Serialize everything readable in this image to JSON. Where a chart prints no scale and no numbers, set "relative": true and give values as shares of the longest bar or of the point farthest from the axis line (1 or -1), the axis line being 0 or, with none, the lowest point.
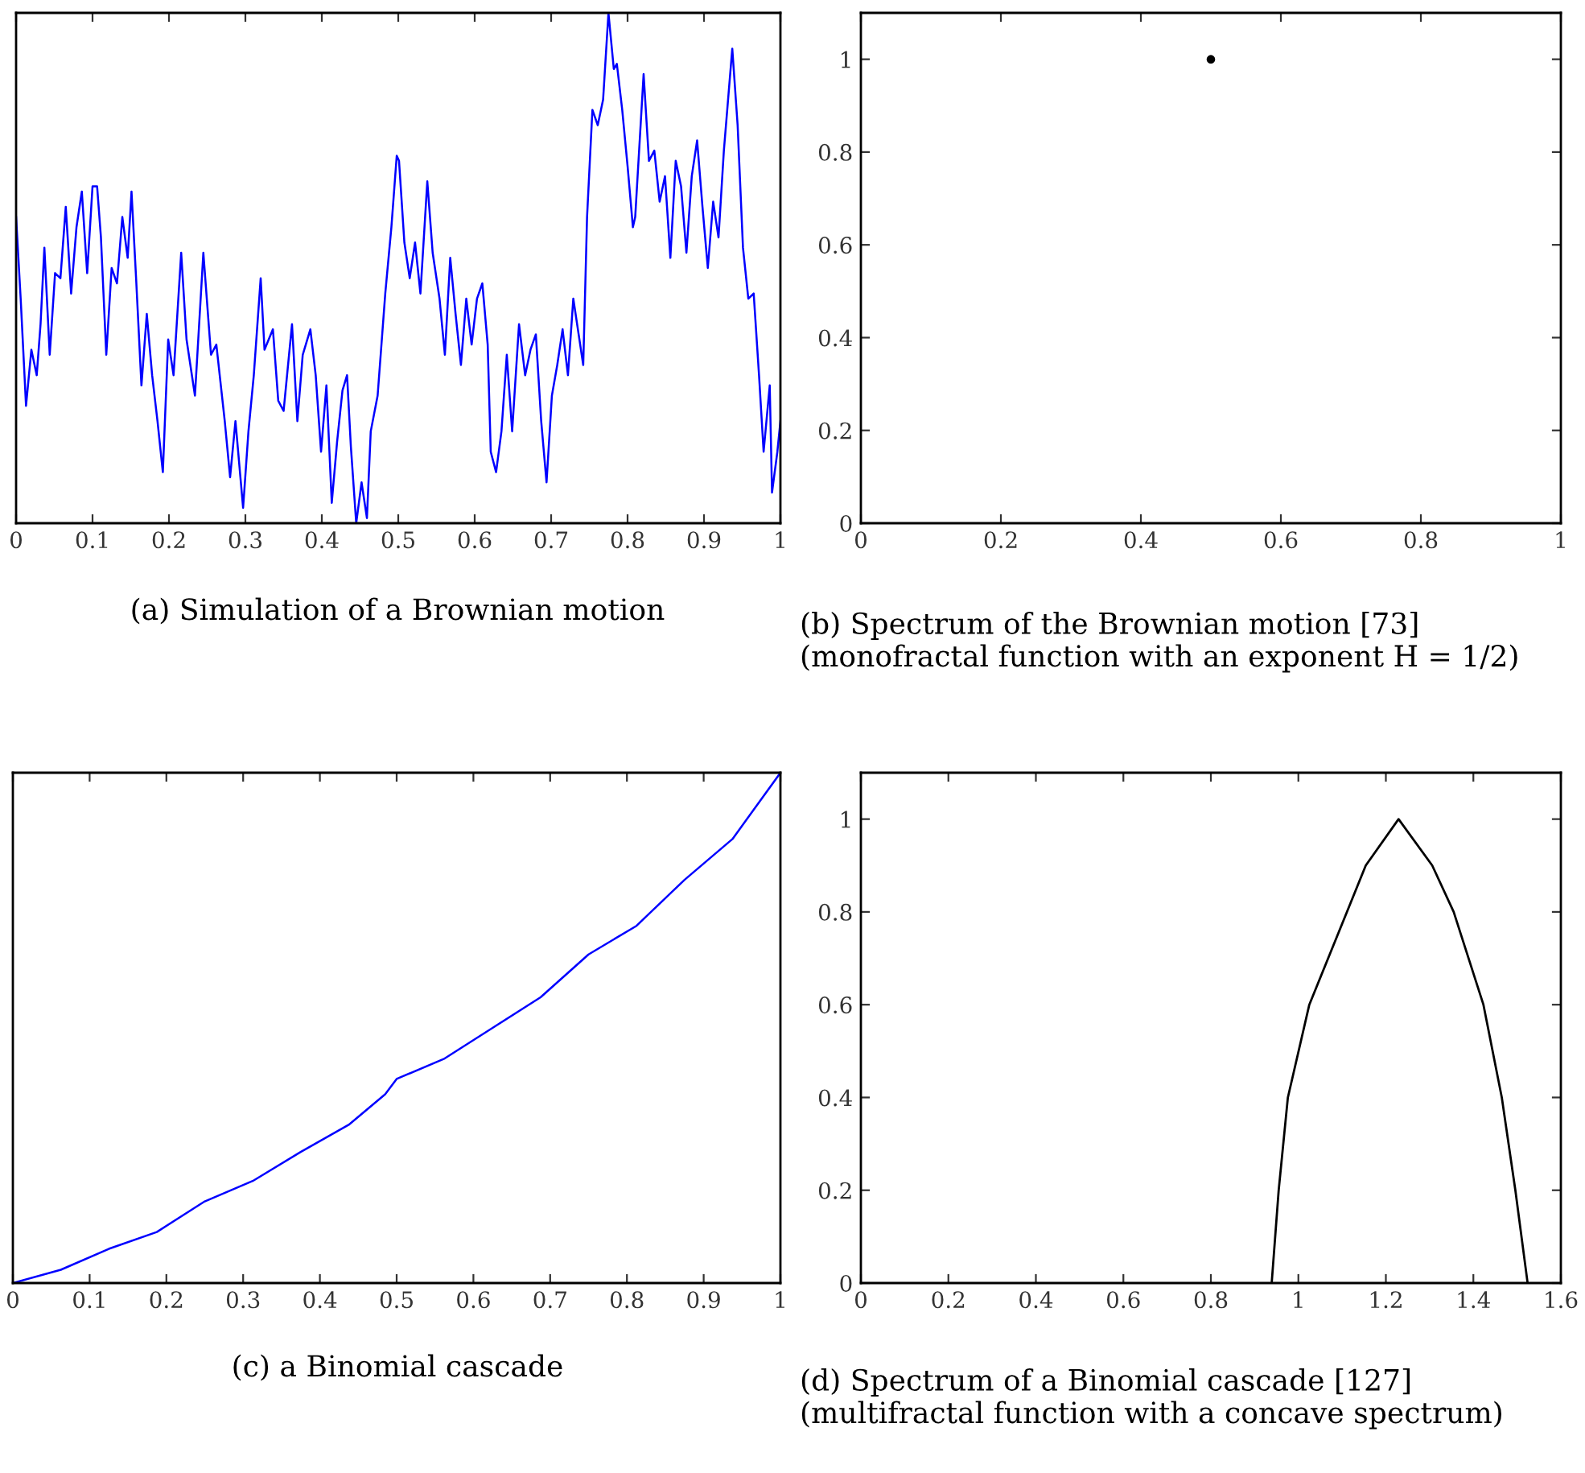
{
  "chart_data": [
    {
      "type": "line",
      "relative": true,
      "color": "#0000ff",
      "xlim": [
        0,
        1
      ],
      "xticks": [
        0,
        0.1,
        0.2,
        0.3,
        0.4,
        0.5,
        0.6,
        0.7,
        0.8,
        0.9,
        1
      ],
      "tick_labels": "x",
      "grid": false,
      "x": [
        0,
        0.006,
        0.013,
        0.02,
        0.027,
        0.032,
        0.037,
        0.044,
        0.051,
        0.058,
        0.065,
        0.072,
        0.079,
        0.086,
        0.093,
        0.1,
        0.106,
        0.111,
        0.118,
        0.125,
        0.132,
        0.139,
        0.146,
        0.151,
        0.157,
        0.164,
        0.171,
        0.178,
        0.185,
        0.192,
        0.199,
        0.206,
        0.216,
        0.223,
        0.234,
        0.245,
        0.255,
        0.262,
        0.273,
        0.28,
        0.287,
        0.297,
        0.304,
        0.311,
        0.32,
        0.325,
        0.336,
        0.343,
        0.35,
        0.361,
        0.368,
        0.375,
        0.385,
        0.392,
        0.399,
        0.406,
        0.413,
        0.42,
        0.427,
        0.433,
        0.438,
        0.445,
        0.452,
        0.459,
        0.464,
        0.473,
        0.483,
        0.491,
        0.498,
        0.501,
        0.508,
        0.515,
        0.522,
        0.529,
        0.538,
        0.545,
        0.554,
        0.561,
        0.568,
        0.575,
        0.582,
        0.589,
        0.596,
        0.603,
        0.61,
        0.617,
        0.621,
        0.628,
        0.635,
        0.642,
        0.649,
        0.658,
        0.666,
        0.673,
        0.68,
        0.687,
        0.694,
        0.701,
        0.708,
        0.715,
        0.722,
        0.729,
        0.736,
        0.742,
        0.747,
        0.754,
        0.761,
        0.768,
        0.775,
        0.782,
        0.786,
        0.793,
        0.8,
        0.807,
        0.81,
        0.821,
        0.828,
        0.835,
        0.842,
        0.849,
        0.856,
        0.863,
        0.87,
        0.877,
        0.884,
        0.891,
        0.898,
        0.905,
        0.912,
        0.919,
        0.926,
        0.937,
        0.944,
        0.951,
        0.958,
        0.965,
        0.972,
        0.978,
        0.986,
        0.989,
        0.996,
        1
      ],
      "values": [
        0.6,
        0.44,
        0.23,
        0.34,
        0.29,
        0.39,
        0.54,
        0.33,
        0.49,
        0.48,
        0.62,
        0.45,
        0.58,
        0.65,
        0.49,
        0.66,
        0.66,
        0.56,
        0.33,
        0.5,
        0.47,
        0.6,
        0.52,
        0.65,
        0.48,
        0.27,
        0.41,
        0.29,
        0.2,
        0.1,
        0.36,
        0.29,
        0.53,
        0.36,
        0.25,
        0.53,
        0.33,
        0.35,
        0.2,
        0.09,
        0.2,
        0.03,
        0.18,
        0.29,
        0.48,
        0.34,
        0.38,
        0.24,
        0.22,
        0.39,
        0.2,
        0.33,
        0.38,
        0.29,
        0.14,
        0.27,
        0.04,
        0.16,
        0.26,
        0.29,
        0.15,
        0,
        0.08,
        0.01,
        0.18,
        0.25,
        0.45,
        0.58,
        0.72,
        0.71,
        0.55,
        0.48,
        0.55,
        0.45,
        0.67,
        0.53,
        0.44,
        0.33,
        0.52,
        0.41,
        0.31,
        0.44,
        0.35,
        0.44,
        0.47,
        0.35,
        0.14,
        0.1,
        0.18,
        0.33,
        0.18,
        0.39,
        0.29,
        0.34,
        0.37,
        0.2,
        0.08,
        0.25,
        0.31,
        0.38,
        0.29,
        0.44,
        0.37,
        0.31,
        0.6,
        0.81,
        0.78,
        0.83,
        1,
        0.89,
        0.9,
        0.81,
        0.7,
        0.58,
        0.6,
        0.88,
        0.71,
        0.73,
        0.63,
        0.68,
        0.52,
        0.71,
        0.66,
        0.53,
        0.68,
        0.75,
        0.62,
        0.5,
        0.63,
        0.56,
        0.73,
        0.93,
        0.78,
        0.54,
        0.44,
        0.45,
        0.29,
        0.14,
        0.27,
        0.06,
        0.14,
        0.2
      ],
      "annotations": [
        "(a) Simulation of a Brownian motion"
      ]
    },
    {
      "type": "scatter",
      "color": "#000000",
      "marker": "circle",
      "xlim": [
        0,
        1
      ],
      "ylim": [
        0,
        1.1
      ],
      "xticks": [
        0,
        0.2,
        0.4,
        0.6,
        0.8,
        1
      ],
      "yticks": [
        0,
        0.2,
        0.4,
        0.6,
        0.8,
        1
      ],
      "grid": false,
      "x": [
        0.5
      ],
      "values": [
        1
      ],
      "annotations": [
        "(b) Spectrum of the Brownian motion [73] (monofractal function with an exponent H = 1/2)"
      ]
    },
    {
      "type": "line",
      "relative": true,
      "color": "#0000ff",
      "xlim": [
        0,
        1
      ],
      "xticks": [
        0,
        0.1,
        0.2,
        0.3,
        0.4,
        0.5,
        0.6,
        0.7,
        0.8,
        0.9,
        1
      ],
      "tick_labels": "x",
      "grid": false,
      "x": [
        0,
        0.0625,
        0.125,
        0.1875,
        0.25,
        0.3125,
        0.375,
        0.4375,
        0.485,
        0.5,
        0.5625,
        0.625,
        0.6875,
        0.75,
        0.8125,
        0.875,
        0.9375,
        1
      ],
      "values": [
        0,
        0.026,
        0.067,
        0.1,
        0.16,
        0.2,
        0.257,
        0.31,
        0.37,
        0.4,
        0.44,
        0.5,
        0.56,
        0.644,
        0.7,
        0.79,
        0.87,
        1
      ],
      "annotations": [
        "(c) a Binomial cascade"
      ]
    },
    {
      "type": "line",
      "color": "#000000",
      "xlim": [
        0,
        1.6
      ],
      "ylim": [
        0,
        1.1
      ],
      "xticks": [
        0,
        0.2,
        0.4,
        0.6,
        0.8,
        1,
        1.2,
        1.4,
        1.6
      ],
      "yticks": [
        0,
        0.2,
        0.4,
        0.6,
        0.8,
        1
      ],
      "grid": false,
      "x": [
        0.939,
        0.955,
        0.976,
        1.025,
        1.111,
        1.154,
        1.229,
        1.306,
        1.355,
        1.423,
        1.465,
        1.496,
        1.524
      ],
      "values": [
        0,
        0.2,
        0.4,
        0.6,
        0.8,
        0.9,
        1,
        0.9,
        0.8,
        0.6,
        0.4,
        0.2,
        0
      ],
      "annotations": [
        "(d) Spectrum of a Binomial cascade [127] (multifractal function with a concave spectrum)"
      ]
    }
  ]
}
